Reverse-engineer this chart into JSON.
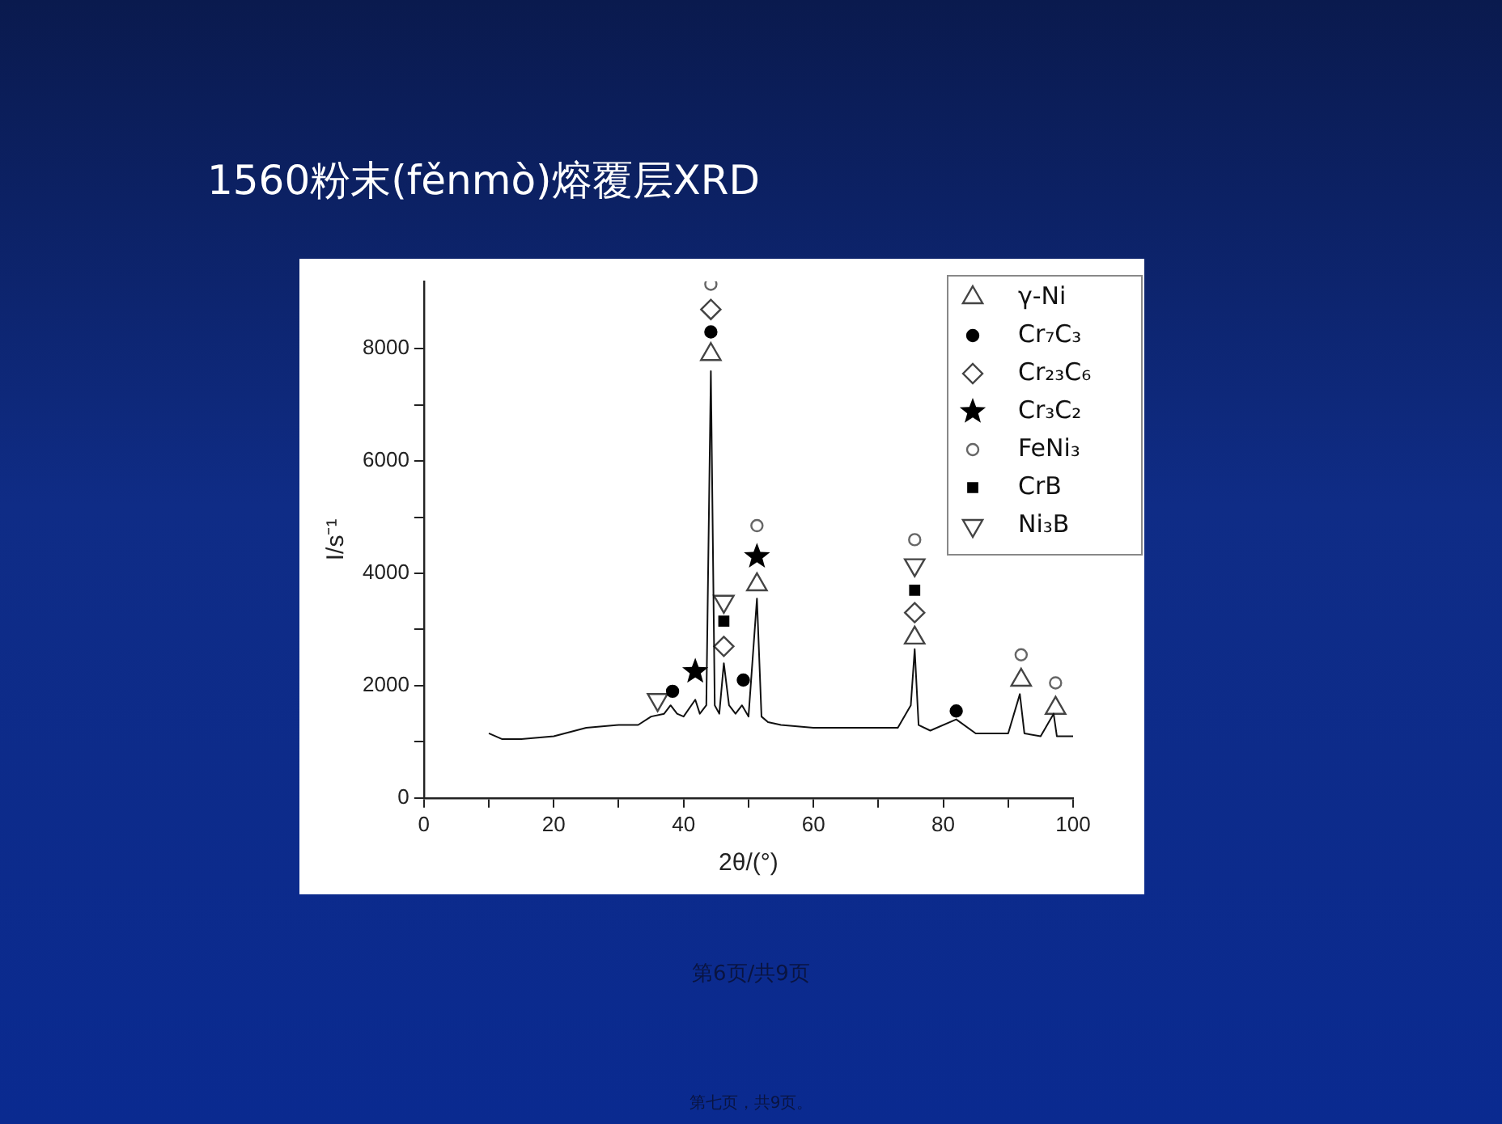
{
  "chart_data": {
    "type": "line",
    "title": "1560粉末(fěnmò)熔覆层XRD",
    "xlabel": "2θ/(°)",
    "ylabel": "I/s⁻¹",
    "xlim": [
      0,
      100
    ],
    "xticks": [
      0,
      {
        "value": 10,
        "label": null
      },
      20,
      {
        "value": 30,
        "label": null
      },
      40,
      {
        "value": 50,
        "label": null
      },
      60,
      {
        "value": 70,
        "label": null
      },
      80,
      {
        "value": 90,
        "label": null
      },
      100
    ],
    "ylim": [
      0,
      9200
    ],
    "yticks": [
      0,
      {
        "value": 1000,
        "label": null
      },
      2000,
      {
        "value": 3000,
        "label": null
      },
      4000,
      {
        "value": 5000,
        "label": null
      },
      6000,
      {
        "value": 7000,
        "label": null
      },
      8000
    ],
    "grid": false,
    "legend": "top right",
    "annotations": [
      "第6页/共9页",
      "第七页，共9页。"
    ],
    "series": [
      {
        "color": "#111111",
        "marker": "none",
        "x": [
          10,
          12,
          15,
          20,
          25,
          30,
          33,
          35,
          37,
          38,
          39,
          40,
          41.8,
          42.5,
          43.5,
          44.2,
          44.8,
          45.5,
          46.2,
          47,
          48,
          49,
          50,
          51.3,
          52,
          53,
          55,
          60,
          65,
          70,
          73,
          75,
          75.6,
          76.2,
          78,
          82,
          85,
          90,
          91.8,
          92.5,
          95,
          97,
          97.5,
          100
        ],
        "values": [
          1150,
          1050,
          1050,
          1100,
          1250,
          1300,
          1300,
          1450,
          1500,
          1650,
          1500,
          1450,
          1750,
          1500,
          1650,
          7600,
          1650,
          1500,
          2400,
          1650,
          1500,
          1650,
          1450,
          3550,
          1450,
          1350,
          1300,
          1250,
          1250,
          1250,
          1250,
          1650,
          2650,
          1300,
          1200,
          1400,
          1150,
          1150,
          1850,
          1150,
          1100,
          1500,
          1100,
          1100
        ]
      },
      {
        "type": "scatter",
        "name": "γ-Ni",
        "color": "#444444",
        "marker": "triangle",
        "x": [
          44.2,
          51.3,
          75.6,
          92,
          97.3
        ],
        "values": [
          7900,
          3800,
          2850,
          2100,
          1600
        ]
      },
      {
        "type": "scatter",
        "name": "Cr₇C₃",
        "color": "#000000",
        "marker": "circle",
        "x": [
          44.2,
          38.3,
          49.2,
          82
        ],
        "values": [
          8300,
          1900,
          2100,
          1550
        ]
      },
      {
        "type": "scatter",
        "name": "Cr₂₃C₆",
        "color": "#444444",
        "marker": "diamond",
        "x": [
          44.2,
          46.2,
          75.6
        ],
        "values": [
          8700,
          2700,
          3300
        ]
      },
      {
        "type": "scatter",
        "name": "Cr₃C₂",
        "color": "#000000",
        "marker": "star",
        "x": [
          41.8,
          51.3
        ],
        "values": [
          2250,
          4300
        ]
      },
      {
        "type": "scatter",
        "name": "FeNi₃",
        "color": "#666666",
        "marker": "circle",
        "x": [
          44.2,
          51.3,
          75.6,
          92,
          97.3
        ],
        "values": [
          9150,
          4850,
          4600,
          2550,
          2050
        ]
      },
      {
        "type": "scatter",
        "name": "CrB",
        "color": "#000000",
        "marker": "square",
        "x": [
          46.2,
          75.6
        ],
        "values": [
          3150,
          3700
        ]
      },
      {
        "type": "scatter",
        "name": "Ni₃B",
        "color": "#444444",
        "marker": "triangle-down",
        "x": [
          36,
          46.2,
          75.6
        ],
        "values": [
          1750,
          3500,
          4150
        ]
      }
    ]
  }
}
